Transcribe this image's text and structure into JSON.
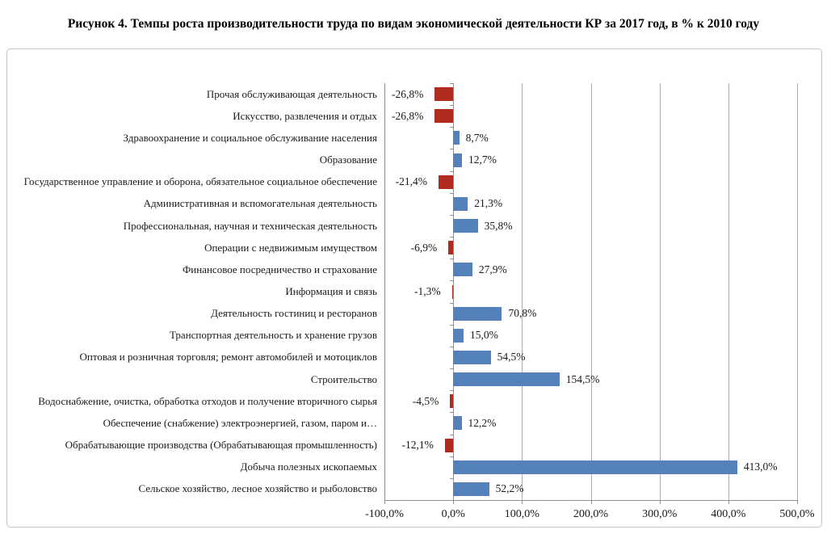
{
  "title": "Рисунок 4.  Темпы роста производительности труда по видам экономической деятельности КР  за 2017 год, в % к 2010 году",
  "chart_data": {
    "type": "bar",
    "orientation": "horizontal",
    "title": "Темпы роста производительности труда по видам экономической деятельности КР за 2017 год, в % к 2010 году",
    "categories": [
      "Прочая обслуживающая деятельность",
      "Искусство, развлечения и отдых",
      "Здравоохранение и социальное обслуживание населения",
      "Образование",
      "Государственное управление и оборона, обязательное социальное обеспечение",
      "Административная и вспомогательная деятельность",
      "Профессиональная, научная и техническая деятельность",
      "Операции с недвижимым имуществом",
      "Финансовое посредничество и страхование",
      "Информация и связь",
      "Деятельность гостиниц и ресторанов",
      "Транспортная деятельность и хранение грузов",
      "Оптовая и розничная торговля; ремонт автомобилей и мотоциклов",
      "Строительство",
      "Водоснабжение, очистка, обработка отходов и получение вторичного сырья",
      "Обеспечение (снабжение) электроэнергией, газом, паром и…",
      "Обрабатывающие производства (Обрабатывающая промышленность)",
      "Добыча полезных ископаемых",
      "Сельское хозяйство, лесное хозяйство и рыболовство"
    ],
    "values": [
      -26.8,
      -26.8,
      8.7,
      12.7,
      -21.4,
      21.3,
      35.8,
      -6.9,
      27.9,
      -1.3,
      70.8,
      15.0,
      54.5,
      154.5,
      -4.5,
      12.2,
      -12.1,
      413.0,
      52.2
    ],
    "value_labels": [
      "-26,8%",
      "-26,8%",
      "8,7%",
      "12,7%",
      "-21,4%",
      "21,3%",
      "35,8%",
      "-6,9%",
      "27,9%",
      "-1,3%",
      "70,8%",
      "15,0%",
      "54,5%",
      "154,5%",
      "-4,5%",
      "12,2%",
      "-12,1%",
      "413,0%",
      "52,2%"
    ],
    "xlim": [
      -100,
      500
    ],
    "x_ticks": [
      -100,
      0,
      100,
      200,
      300,
      400,
      500
    ],
    "x_tick_labels": [
      "-100,0%",
      "0,0%",
      "100,0%",
      "200,0%",
      "300,0%",
      "400,0%",
      "500,0%"
    ],
    "grid": "vertical-major",
    "legend": "none",
    "colors": {
      "positive_bar": "#5581BA",
      "negative_bar": "#B02C21",
      "gridline": "#AEAEAE",
      "axis": "#8F8F8F",
      "frame_border": "#C4C4C4"
    }
  }
}
